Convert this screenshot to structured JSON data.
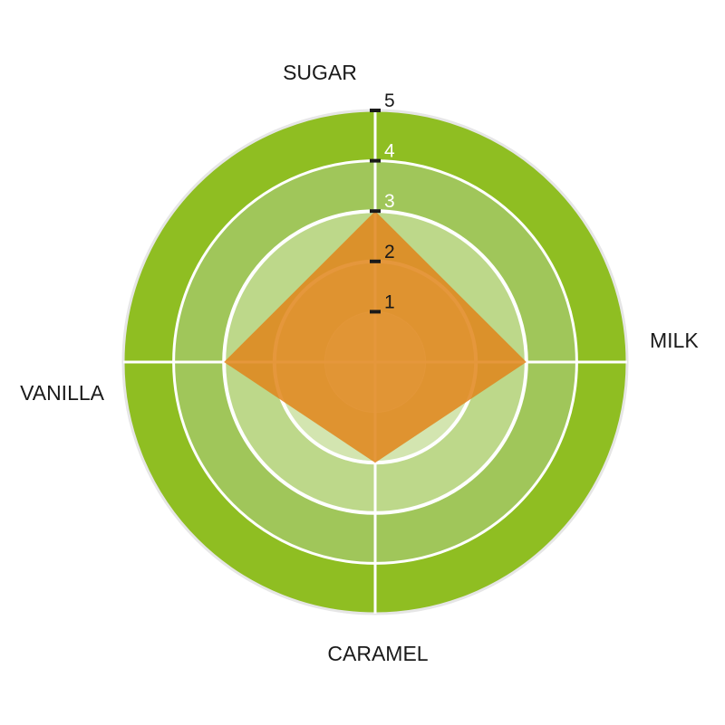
{
  "chart_data": {
    "type": "radar",
    "categories": [
      "SUGAR",
      "MILK",
      "CARAMEL",
      "VANILLA"
    ],
    "values": [
      3,
      3,
      2,
      3
    ],
    "rlim": [
      0,
      5
    ],
    "ticks": [
      "1",
      "2",
      "3",
      "4",
      "5"
    ],
    "band_colors": [
      "#e3efcf",
      "#d3e5b0",
      "#bdd88a",
      "#a0c65a",
      "#8fbe22"
    ],
    "series_color": "#e0851a",
    "grid": true
  }
}
